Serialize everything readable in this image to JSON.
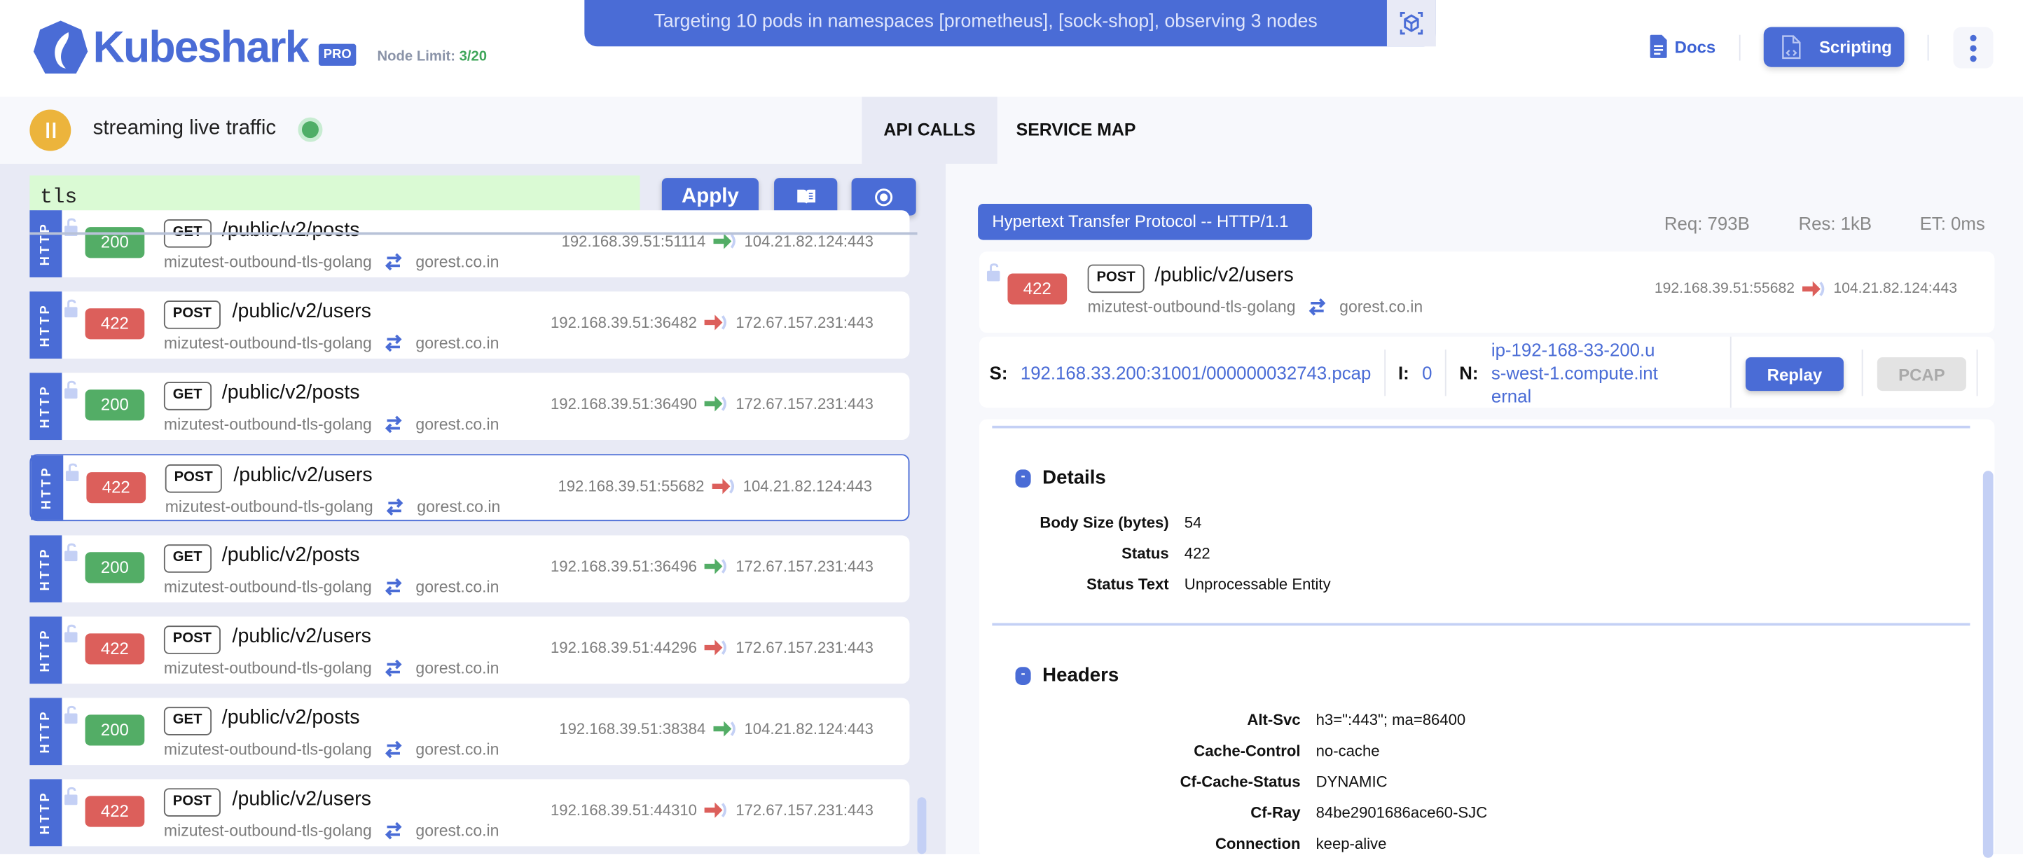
{
  "header": {
    "brand": "Kubeshark",
    "edition": "PRO",
    "node_limit_label": "Node Limit:",
    "node_limit_value": "3/20",
    "banner": "Targeting 10 pods in namespaces [prometheus], [sock-shop], observing 3 nodes",
    "docs_label": "Docs",
    "scripting_label": "Scripting"
  },
  "status": {
    "text": "streaming live traffic"
  },
  "tabs": [
    {
      "label": "API CALLS",
      "active": true
    },
    {
      "label": "SERVICE MAP",
      "active": false
    }
  ],
  "filter": {
    "value": "tls",
    "apply_label": "Apply"
  },
  "colors": {
    "accent": "#4a6cd6",
    "success": "#53ad66",
    "error": "#dc5f5b",
    "filter_valid_bg": "#dafad4"
  },
  "entries": [
    {
      "protocol": "HTTP",
      "status": "200",
      "method": "GET",
      "path": "/public/v2/posts",
      "source": "mizutest-outbound-tls-golang",
      "destination": "gorest.co.in",
      "src_ip": "192.168.39.51:51114",
      "dst_ip": "104.21.82.124:443",
      "selected": false
    },
    {
      "protocol": "HTTP",
      "status": "422",
      "method": "POST",
      "path": "/public/v2/users",
      "source": "mizutest-outbound-tls-golang",
      "destination": "gorest.co.in",
      "src_ip": "192.168.39.51:36482",
      "dst_ip": "172.67.157.231:443",
      "selected": false
    },
    {
      "protocol": "HTTP",
      "status": "200",
      "method": "GET",
      "path": "/public/v2/posts",
      "source": "mizutest-outbound-tls-golang",
      "destination": "gorest.co.in",
      "src_ip": "192.168.39.51:36490",
      "dst_ip": "172.67.157.231:443",
      "selected": false
    },
    {
      "protocol": "HTTP",
      "status": "422",
      "method": "POST",
      "path": "/public/v2/users",
      "source": "mizutest-outbound-tls-golang",
      "destination": "gorest.co.in",
      "src_ip": "192.168.39.51:55682",
      "dst_ip": "104.21.82.124:443",
      "selected": true
    },
    {
      "protocol": "HTTP",
      "status": "200",
      "method": "GET",
      "path": "/public/v2/posts",
      "source": "mizutest-outbound-tls-golang",
      "destination": "gorest.co.in",
      "src_ip": "192.168.39.51:36496",
      "dst_ip": "172.67.157.231:443",
      "selected": false
    },
    {
      "protocol": "HTTP",
      "status": "422",
      "method": "POST",
      "path": "/public/v2/users",
      "source": "mizutest-outbound-tls-golang",
      "destination": "gorest.co.in",
      "src_ip": "192.168.39.51:44296",
      "dst_ip": "172.67.157.231:443",
      "selected": false
    },
    {
      "protocol": "HTTP",
      "status": "200",
      "method": "GET",
      "path": "/public/v2/posts",
      "source": "mizutest-outbound-tls-golang",
      "destination": "gorest.co.in",
      "src_ip": "192.168.39.51:38384",
      "dst_ip": "104.21.82.124:443",
      "selected": false
    },
    {
      "protocol": "HTTP",
      "status": "422",
      "method": "POST",
      "path": "/public/v2/users",
      "source": "mizutest-outbound-tls-golang",
      "destination": "gorest.co.in",
      "src_ip": "192.168.39.51:44310",
      "dst_ip": "172.67.157.231:443",
      "selected": false
    }
  ],
  "detail": {
    "protocol_badge": "Hypertext Transfer Protocol -- HTTP/1.1",
    "req": "Req: 793B",
    "res": "Res: 1kB",
    "et": "ET: 0ms",
    "summary": {
      "status": "422",
      "method": "POST",
      "path": "/public/v2/users",
      "source": "mizutest-outbound-tls-golang",
      "destination": "gorest.co.in",
      "src_ip": "192.168.39.51:55682",
      "dst_ip": "104.21.82.124:443"
    },
    "source_label": "S:",
    "source_value": "192.168.33.200:31001/000000032743.pcap",
    "index_label": "I:",
    "index_value": "0",
    "node_label": "N:",
    "node_value": "ip-192-168-33-200.us-west-1.compute.internal",
    "replay_label": "Replay",
    "pcap_label": "PCAP",
    "details_title": "Details",
    "details": [
      {
        "key": "Body Size (bytes)",
        "value": "54"
      },
      {
        "key": "Status",
        "value": "422"
      },
      {
        "key": "Status Text",
        "value": "Unprocessable Entity"
      }
    ],
    "headers_title": "Headers",
    "headers": [
      {
        "key": "Alt-Svc",
        "value": "h3=\":443\"; ma=86400"
      },
      {
        "key": "Cache-Control",
        "value": "no-cache"
      },
      {
        "key": "Cf-Cache-Status",
        "value": "DYNAMIC"
      },
      {
        "key": "Cf-Ray",
        "value": "84be2901686ace60-SJC"
      },
      {
        "key": "Connection",
        "value": "keep-alive"
      }
    ]
  }
}
